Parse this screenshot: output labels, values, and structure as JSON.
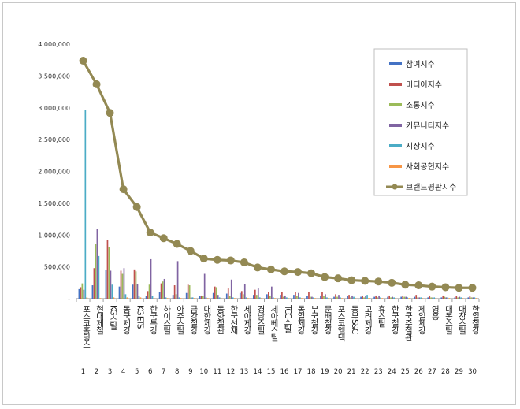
{
  "chart_data": {
    "type": "bar",
    "title": "",
    "xlabel": "",
    "ylabel": "",
    "ylim": [
      0,
      4000000
    ],
    "yticks": [
      0,
      500000,
      1000000,
      1500000,
      2000000,
      2500000,
      3000000,
      3500000,
      4000000
    ],
    "ytick_labels": [
      "-",
      "500,000",
      "1,000,000",
      "1,500,000",
      "2,000,000",
      "2,500,000",
      "3,000,000",
      "3,500,000",
      "4,000,000"
    ],
    "grid": false,
    "legend_position": "top-right",
    "categories": [
      "포스코홀딩스",
      "현대제철",
      "KG스틸",
      "동국제강",
      "KG ETS",
      "한국특강",
      "하이스틸",
      "아주스틸",
      "금강철강",
      "대한제강",
      "동양철관",
      "한국선재",
      "세아제강",
      "경남스틸",
      "세아베스틸",
      "TCC스틸",
      "동일제강",
      "부국철강",
      "문배철강",
      "포스코엠텍",
      "동부S&C",
      "고려제강",
      "휴스틸",
      "한국철강",
      "한국주철관",
      "제일제강",
      "영흥",
      "대동스틸",
      "대창스틸",
      "한일철강"
    ],
    "ranks": [
      "1",
      "2",
      "3",
      "4",
      "5",
      "6",
      "7",
      "8",
      "9",
      "10",
      "11",
      "12",
      "13",
      "14",
      "15",
      "16",
      "17",
      "18",
      "19",
      "20",
      "21",
      "22",
      "23",
      "24",
      "25",
      "26",
      "27",
      "28",
      "29",
      "30"
    ],
    "series": [
      {
        "name": "참여지수",
        "color": "#4472c4",
        "kind": "bar",
        "values": [
          150000,
          210000,
          450000,
          190000,
          220000,
          40000,
          110000,
          60000,
          90000,
          40000,
          90000,
          80000,
          90000,
          60000,
          70000,
          60000,
          60000,
          40000,
          50000,
          30000,
          40000,
          30000,
          30000,
          30000,
          30000,
          30000,
          20000,
          20000,
          20000,
          20000
        ]
      },
      {
        "name": "미디어지수",
        "color": "#c0504d",
        "kind": "bar",
        "values": [
          180000,
          480000,
          920000,
          440000,
          460000,
          120000,
          240000,
          210000,
          220000,
          50000,
          190000,
          160000,
          120000,
          140000,
          110000,
          110000,
          110000,
          110000,
          100000,
          70000,
          60000,
          50000,
          50000,
          50000,
          50000,
          60000,
          50000,
          50000,
          40000,
          40000
        ]
      },
      {
        "name": "소통지수",
        "color": "#9bbb59",
        "kind": "bar",
        "values": [
          240000,
          860000,
          810000,
          390000,
          430000,
          220000,
          270000,
          70000,
          210000,
          40000,
          180000,
          40000,
          70000,
          60000,
          50000,
          30000,
          40000,
          30000,
          40000,
          30000,
          20000,
          20000,
          20000,
          20000,
          30000,
          20000,
          20000,
          30000,
          20000,
          20000
        ]
      },
      {
        "name": "커뮤니티지수",
        "color": "#8064a2",
        "kind": "bar",
        "values": [
          140000,
          1100000,
          440000,
          480000,
          230000,
          620000,
          310000,
          590000,
          20000,
          390000,
          60000,
          300000,
          230000,
          160000,
          190000,
          50000,
          90000,
          30000,
          70000,
          60000,
          50000,
          50000,
          50000,
          30000,
          30000,
          20000,
          20000,
          20000,
          30000,
          20000
        ]
      },
      {
        "name": "시장지수",
        "color": "#4bacc6",
        "kind": "bar",
        "values": [
          2960000,
          670000,
          220000,
          70000,
          50000,
          40000,
          20000,
          20000,
          20000,
          20000,
          20000,
          20000,
          20000,
          20000,
          20000,
          20000,
          20000,
          20000,
          20000,
          20000,
          30000,
          60000,
          20000,
          20000,
          20000,
          20000,
          20000,
          20000,
          20000,
          20000
        ]
      },
      {
        "name": "사회공헌지수",
        "color": "#f79646",
        "kind": "bar",
        "values": [
          20000,
          10000,
          20000,
          20000,
          20000,
          10000,
          10000,
          10000,
          10000,
          10000,
          10000,
          10000,
          10000,
          10000,
          10000,
          10000,
          10000,
          10000,
          10000,
          10000,
          10000,
          10000,
          10000,
          10000,
          10000,
          10000,
          10000,
          10000,
          10000,
          10000
        ]
      },
      {
        "name": "브랜드평판지수",
        "color": "#938953",
        "kind": "line",
        "values": [
          3740000,
          3370000,
          2920000,
          1720000,
          1440000,
          1040000,
          950000,
          860000,
          750000,
          630000,
          610000,
          600000,
          570000,
          490000,
          460000,
          430000,
          420000,
          400000,
          340000,
          320000,
          290000,
          280000,
          270000,
          250000,
          220000,
          210000,
          190000,
          180000,
          170000,
          170000
        ]
      }
    ]
  }
}
